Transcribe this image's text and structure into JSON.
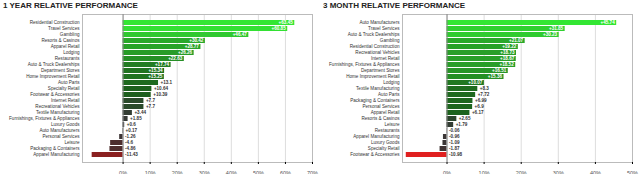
{
  "chart_data": [
    {
      "type": "bar",
      "title": "1 YEAR RELATIVE PERFORMANCE",
      "orientation": "horizontal",
      "categories": [
        "Residential Construction",
        "Travel Services",
        "Gambling",
        "Resorts & Casinos",
        "Apparel Retail",
        "Lodging",
        "Restaurants",
        "Auto & Truck Dealerships",
        "Department Stores",
        "Home Improvement Retail",
        "Auto Parts",
        "Specialty Retail",
        "Footwear & Accessories",
        "Internet Retail",
        "Recreational Vehicles",
        "Textile Manufacturing",
        "Furnishings, Fixtures & Appliances",
        "Luxury Goods",
        "Auto Manufacturers",
        "Personal Services",
        "Leisure",
        "Packaging & Containers",
        "Apparel Manufacturing"
      ],
      "values": [
        63.45,
        60.85,
        46.47,
        30.42,
        28.77,
        26.26,
        22.63,
        17.74,
        15.34,
        15.25,
        13.1,
        10.64,
        10.39,
        7.7,
        7.7,
        3.44,
        1.85,
        0.6,
        0.17,
        -1.26,
        -4.6,
        -4.86,
        -11.43
      ],
      "value_labels": [
        "+63.45",
        "+60.85",
        "+46.47",
        "+30.42",
        "+28.77",
        "+26.26",
        "+22.63",
        "+17.74",
        "+15.34",
        "+15.25",
        "+13.1",
        "+10.64",
        "+10.39",
        "+7.7",
        "+7.7",
        "+3.44",
        "+1.85",
        "+0.6",
        "+0.17",
        "-1.26",
        "-4.6",
        "-4.86",
        "-11.43"
      ],
      "colors": [
        "#33e633",
        "#33e033",
        "#2fc82f",
        "#2aa82a",
        "#29a329",
        "#289c28",
        "#268f26",
        "#237d23",
        "#217321",
        "#217321",
        "#1f6a1f",
        "#1d601d",
        "#1d5f1d",
        "#2a4a2a",
        "#2a4a2a",
        "#333d33",
        "#363a36",
        "#383838",
        "#383838",
        "#3d3535",
        "#4d2e2e",
        "#4f2e2e",
        "#8a2020"
      ],
      "xlim": [
        -15,
        70
      ],
      "xticks": [
        {
          "value": 0,
          "label": "0%"
        },
        {
          "value": 10,
          "label": "10%"
        },
        {
          "value": 20,
          "label": "20%"
        },
        {
          "value": 30,
          "label": "30%"
        },
        {
          "value": 40,
          "label": "40%"
        },
        {
          "value": 50,
          "label": "50%"
        },
        {
          "value": 60,
          "label": "60%"
        },
        {
          "value": 70,
          "label": "70%"
        }
      ],
      "grid": true,
      "data_labels": true
    },
    {
      "type": "bar",
      "title": "3 MONTH RELATIVE PERFORMANCE",
      "orientation": "horizontal",
      "categories": [
        "Auto Manufacturers",
        "Travel Services",
        "Auto & Truck Dealerships",
        "Gambling",
        "Residential Construction",
        "Recreational Vehicles",
        "Internet Retail",
        "Furnishings, Fixtures & Appliances",
        "Department Stores",
        "Home Improvement Retail",
        "Lodging",
        "Textile Manufacturing",
        "Auto Parts",
        "Packaging & Containers",
        "Personal Services",
        "Apparel Retail",
        "Resorts & Casinos",
        "Leisure",
        "Restaurants",
        "Apparel Manufacturing",
        "Luxury Goods",
        "Specialty Retail",
        "Footwear & Accessories"
      ],
      "values": [
        45.74,
        31.85,
        30.23,
        21.07,
        19.22,
        18.73,
        18.67,
        18.52,
        16.51,
        15.36,
        10.07,
        8.3,
        7.72,
        6.99,
        6.9,
        6.17,
        2.65,
        1.79,
        -0.06,
        -0.96,
        -1.09,
        -1.87,
        -10.98
      ],
      "value_labels": [
        "+45.74",
        "+31.85",
        "+30.23",
        "+21.07",
        "+19.22",
        "+18.73",
        "+18.67",
        "+18.52",
        "+16.51",
        "+15.36",
        "+10.07",
        "+8.3",
        "+7.72",
        "+6.99",
        "+6.9",
        "+6.17",
        "+2.65",
        "+1.79",
        "-0.06",
        "-0.96",
        "-1.09",
        "-1.87",
        "-10.98"
      ],
      "colors": [
        "#33e633",
        "#30d030",
        "#2fcb2f",
        "#2aa82a",
        "#29a129",
        "#299f29",
        "#299f29",
        "#289e28",
        "#279527",
        "#258f25",
        "#217821",
        "#1f6c1f",
        "#1f6a1f",
        "#1e661e",
        "#1e661e",
        "#1d631d",
        "#2d452d",
        "#333d33",
        "#383838",
        "#3b3636",
        "#3c3636",
        "#403434",
        "#e02020"
      ],
      "xlim": [
        -12,
        50
      ],
      "xticks": [
        {
          "value": 0,
          "label": "0%"
        },
        {
          "value": 10,
          "label": "10%"
        },
        {
          "value": 20,
          "label": "20%"
        },
        {
          "value": 30,
          "label": "30%"
        },
        {
          "value": 40,
          "label": "40%"
        },
        {
          "value": 50,
          "label": "50%"
        }
      ],
      "grid": true,
      "data_labels": true
    }
  ]
}
